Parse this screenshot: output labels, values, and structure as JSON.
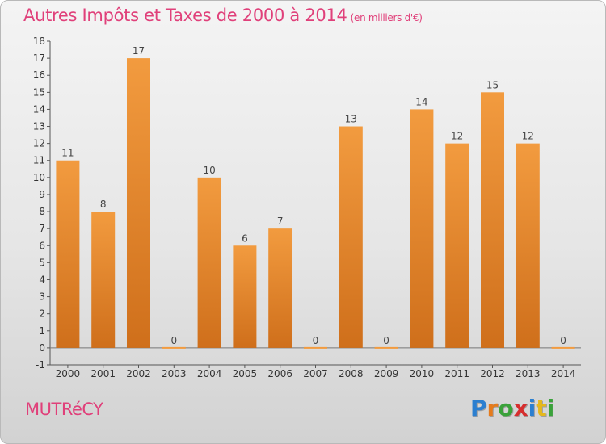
{
  "header": {
    "title": "Autres Impôts et Taxes de 2000 à 2014",
    "unit": "(en milliers d'€)"
  },
  "footer": {
    "commune": "MUTRéCY",
    "brand_letters": [
      {
        "char": "P",
        "color": "#2b7fd0"
      },
      {
        "char": "r",
        "color": "#e67b1c"
      },
      {
        "char": "o",
        "color": "#3aa23a"
      },
      {
        "char": "x",
        "color": "#d62e2e"
      },
      {
        "char": "i",
        "color": "#2b7fd0"
      },
      {
        "char": "t",
        "color": "#e6b81c"
      },
      {
        "char": "i",
        "color": "#3aa23a"
      }
    ]
  },
  "chart_data": {
    "type": "bar",
    "title": "Autres Impôts et Taxes de 2000 à 2014",
    "subtitle": "(en milliers d'€)",
    "categories": [
      "2000",
      "2001",
      "2002",
      "2003",
      "2004",
      "2005",
      "2006",
      "2007",
      "2008",
      "2009",
      "2010",
      "2011",
      "2012",
      "2013",
      "2014"
    ],
    "values": [
      11,
      8,
      17,
      0,
      10,
      6,
      7,
      0,
      13,
      0,
      14,
      12,
      15,
      12,
      0
    ],
    "ylim": [
      -1,
      18
    ],
    "yticks": [
      -1,
      0,
      1,
      2,
      3,
      4,
      5,
      6,
      7,
      8,
      9,
      10,
      11,
      12,
      13,
      14,
      15,
      16,
      17,
      18
    ],
    "grid": false,
    "bar_color": "#f29b3f",
    "bar_color_dark": "#cf6f1b"
  }
}
